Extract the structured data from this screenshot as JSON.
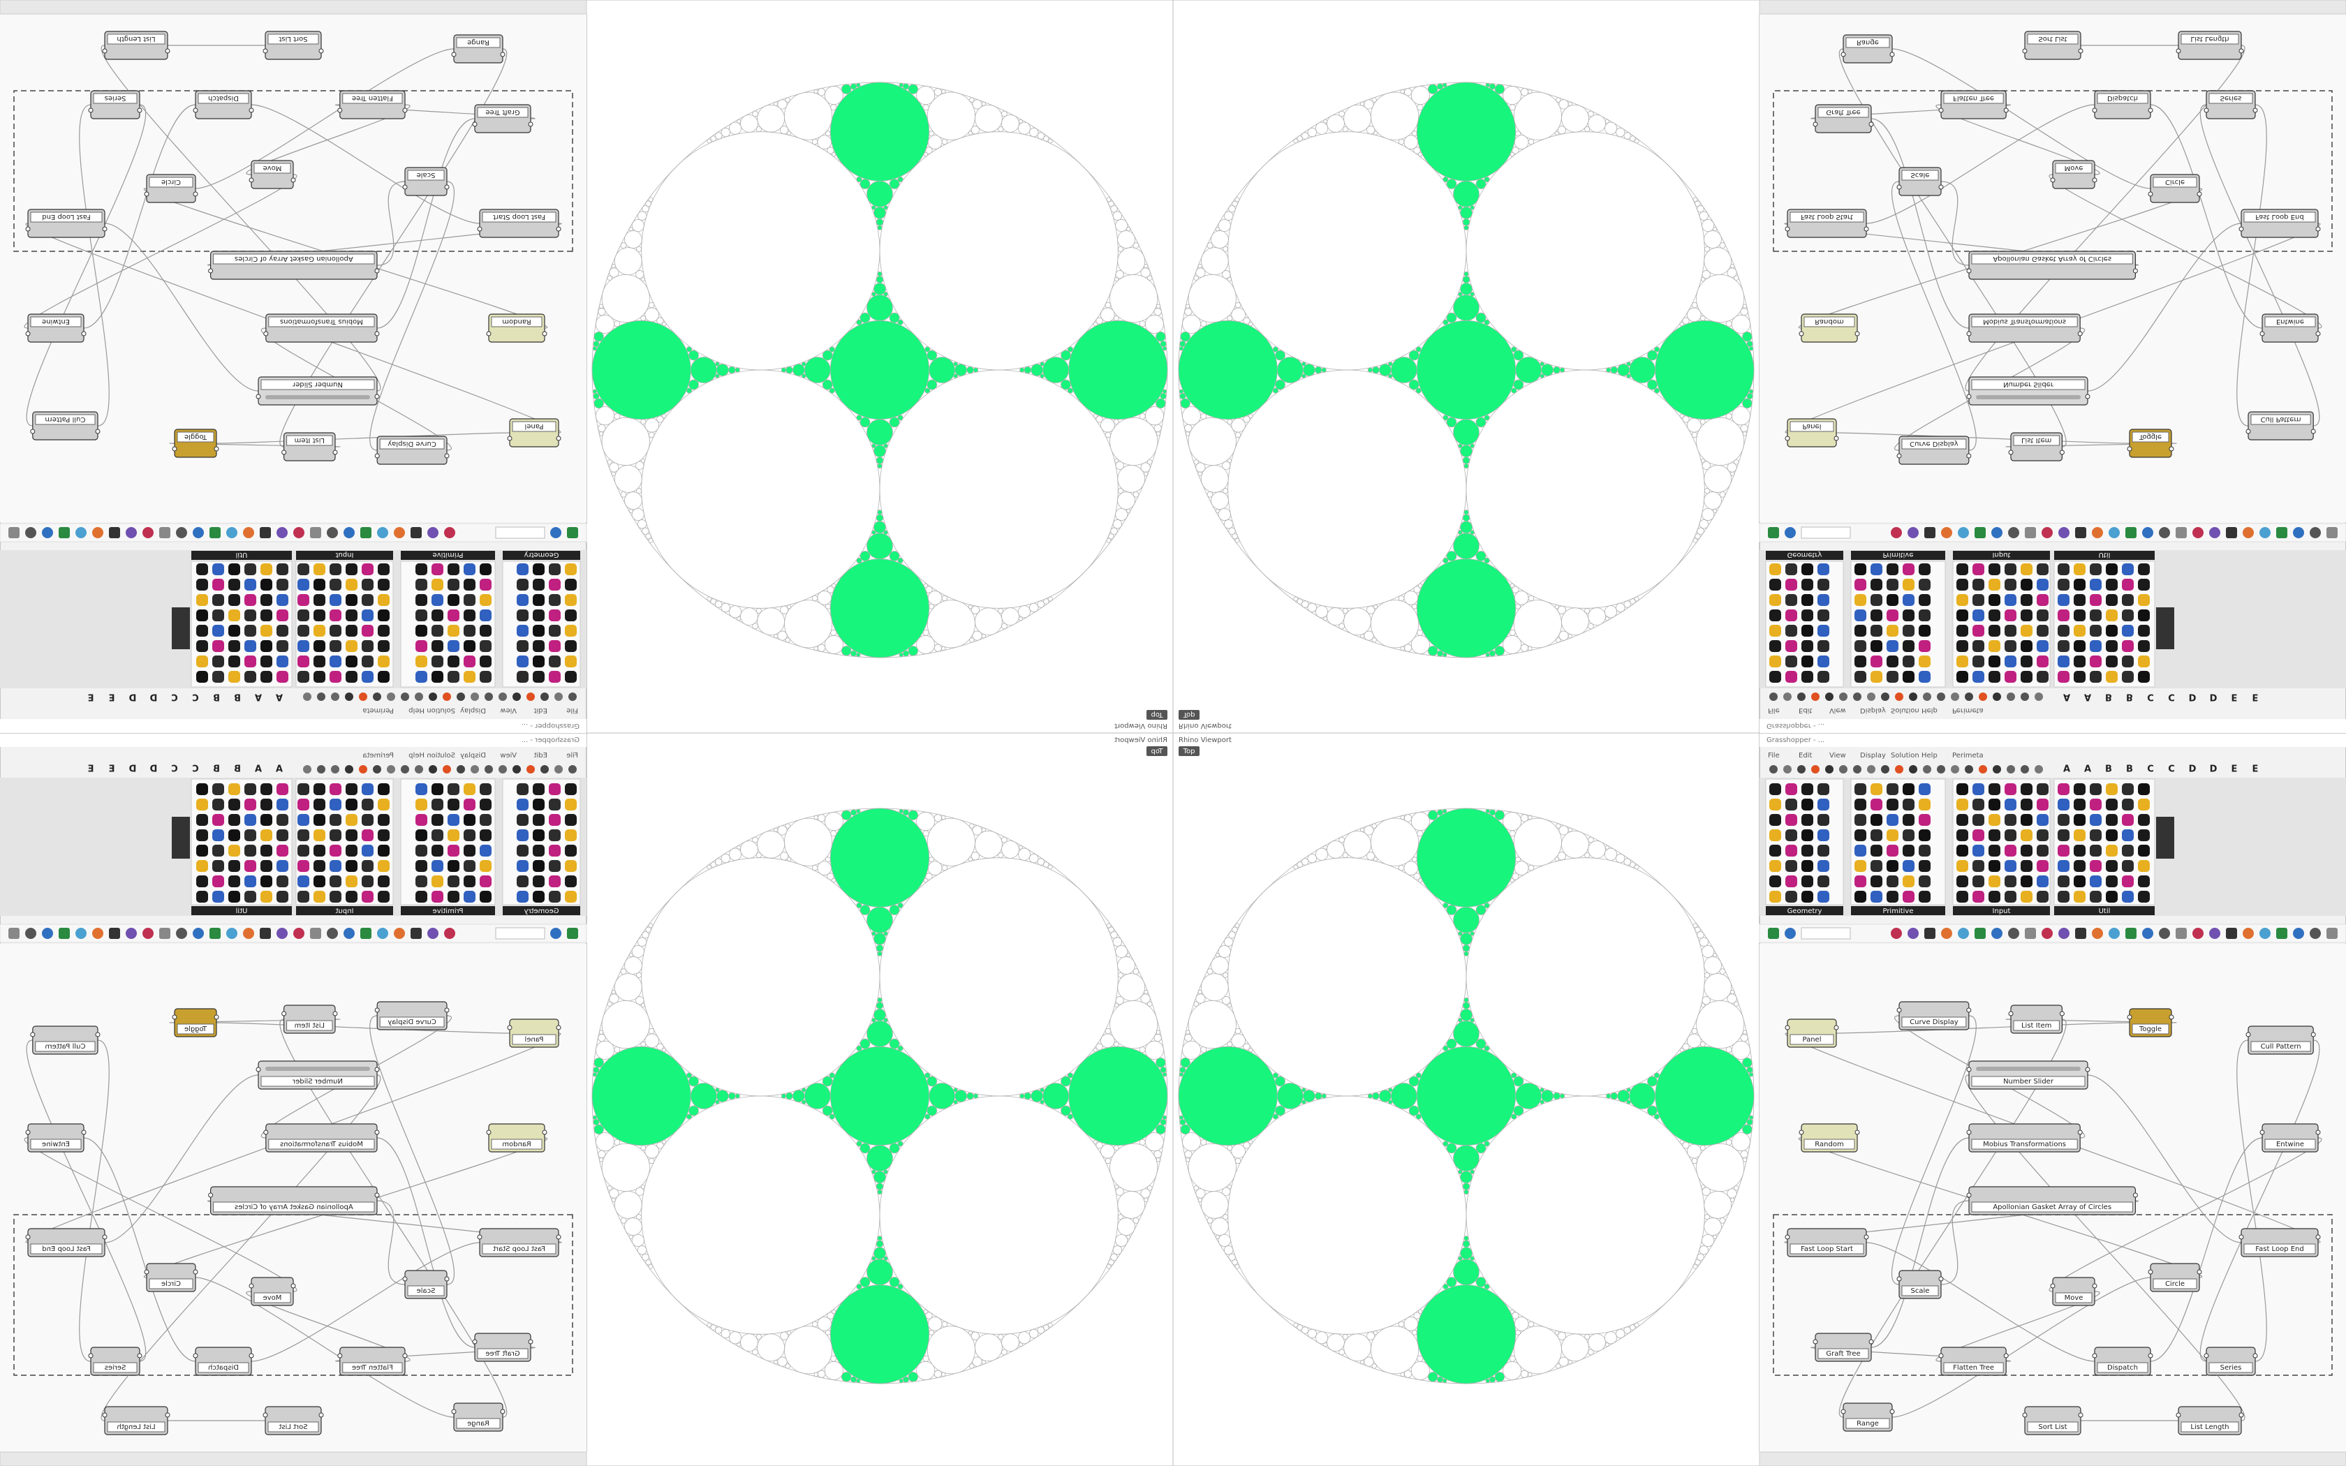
{
  "window": {
    "gh_title": "Grasshopper - ...",
    "rhino_title": "Rhino Viewport",
    "view": "Top"
  },
  "menu": [
    "File",
    "Edit",
    "View",
    "Display",
    "Solution",
    "Help",
    "Perimeta"
  ],
  "tab_letters": [
    "A",
    "B",
    "C",
    "D",
    "E"
  ],
  "ribbon_tabs": [
    "Geometry",
    "Primitive",
    "Input",
    "Util"
  ],
  "nodes": [
    "Panel",
    "Curve Display",
    "List Item",
    "Toggle",
    "Number Slider",
    "Cull Pattern",
    "Mobius Transformations",
    "Apollonian Gasket Array of Circles",
    "Fast Loop Start",
    "Fast Loop End",
    "Scale",
    "Move",
    "Circle",
    "Graft Tree",
    "Flatten Tree",
    "Dispatch",
    "Series",
    "Range",
    "Sort List",
    "List Length",
    "Entwine",
    "Random"
  ]
}
